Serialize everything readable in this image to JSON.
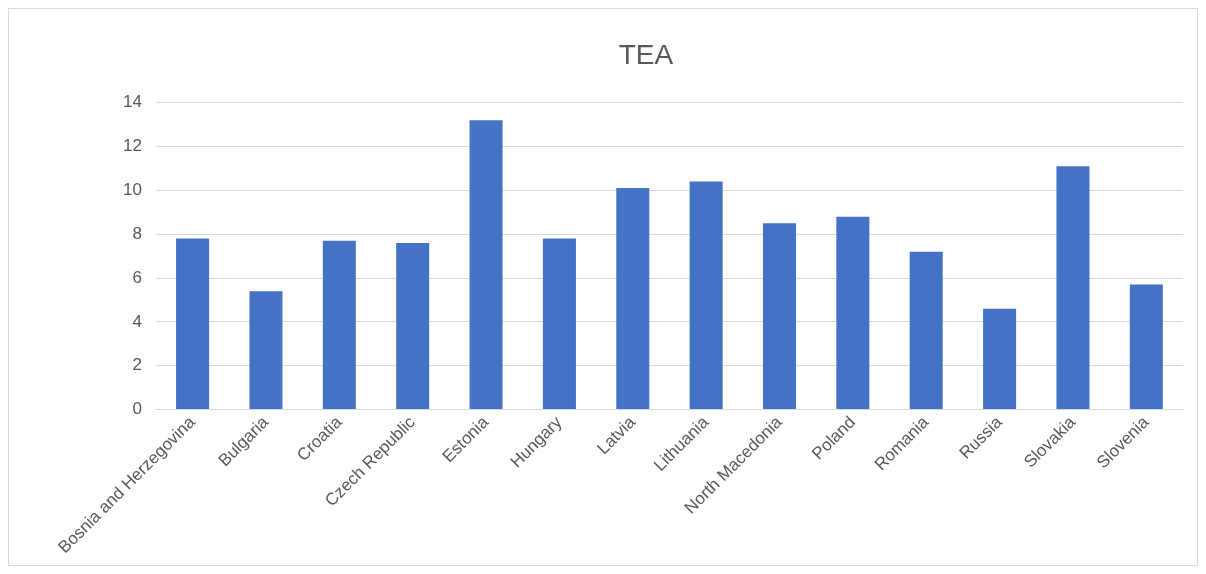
{
  "chart_data": {
    "type": "bar",
    "title": "TEA",
    "categories": [
      "Bosnia and Herzegovina",
      "Bulgaria",
      "Croatia",
      "Czech Republic",
      "Estonia",
      "Hungary",
      "Latvia",
      "Lithuania",
      "North Macedonia",
      "Poland",
      "Romania",
      "Russia",
      "Slovakia",
      "Slovenia"
    ],
    "values": [
      7.8,
      5.4,
      7.7,
      7.6,
      13.2,
      7.8,
      10.1,
      10.4,
      8.5,
      8.8,
      7.2,
      4.6,
      11.1,
      5.7
    ],
    "color": "#4472c4",
    "ylim": [
      0,
      14
    ],
    "yticks": [
      0,
      2,
      4,
      6,
      8,
      10,
      12,
      14
    ],
    "grid": "y",
    "legend": false
  }
}
